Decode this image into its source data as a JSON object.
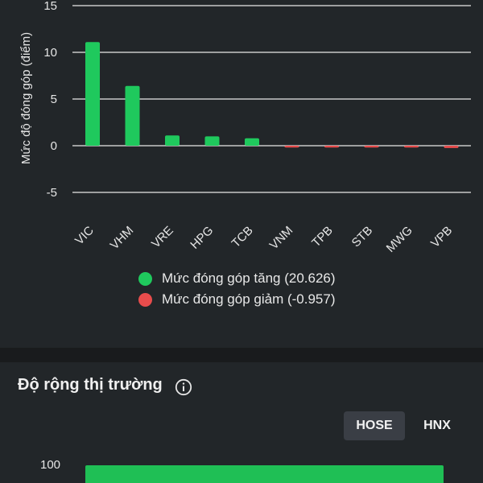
{
  "chart_data": {
    "type": "bar",
    "ylabel": "Mức độ đóng góp (điểm)",
    "ylim": [
      -5,
      15
    ],
    "yticks": [
      "15",
      "10",
      "5",
      "0",
      "-5"
    ],
    "ytick_values": [
      15,
      10,
      5,
      0,
      -5
    ],
    "grid": true,
    "categories": [
      "VIC",
      "VHM",
      "VRE",
      "HPG",
      "TCB",
      "VNM",
      "TPB",
      "STB",
      "MWG",
      "VPB"
    ],
    "values": [
      11.1,
      6.4,
      1.1,
      1.0,
      0.8,
      -0.08,
      -0.08,
      -0.08,
      -0.08,
      -0.25
    ],
    "colors": {
      "positive": "#1fc95d",
      "negative": "#e84c4c"
    },
    "legend": [
      {
        "label": "Mức đóng góp tăng (20.626)",
        "color": "#1fc95d"
      },
      {
        "label": "Mức đóng góp giảm (-0.957)",
        "color": "#e84c4c"
      }
    ],
    "legend_position": "bottom"
  },
  "breadth": {
    "title": "Độ rộng thị trường",
    "info_icon": "info-icon",
    "tabs": [
      {
        "label": "HOSE",
        "active": true
      },
      {
        "label": "HNX",
        "active": false
      }
    ],
    "axis_top_label": "100",
    "bar_color": "#1fbf55"
  }
}
